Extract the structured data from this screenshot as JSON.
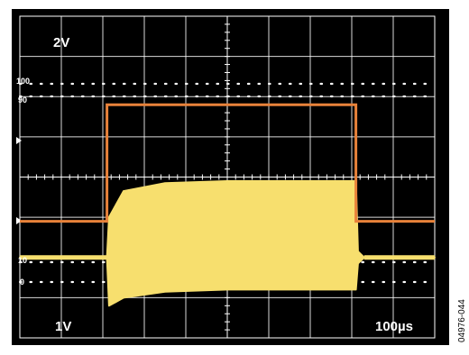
{
  "figure_id": "04976-044",
  "chart_data": {
    "type": "line",
    "title": "",
    "grid": true,
    "colors": {
      "background": "#000000",
      "grid": "#ffffff",
      "channel1": "#e8823a",
      "channel2": "#f7df6e"
    },
    "time_per_div": "100µs",
    "divisions": {
      "x": 10,
      "y": 8
    },
    "labels": {
      "ch1_scale": "2V",
      "ch2_scale": "1V",
      "timebase": "100µs",
      "ref_100": "100",
      "ref_90": "90",
      "ref_10": "10",
      "ref_0": "0"
    },
    "series": [
      {
        "name": "",
        "scale": "2V/div",
        "x_div": [
          0,
          2.1,
          2.1,
          8.1,
          8.1,
          10
        ],
        "y_div": [
          -1.1,
          -1.1,
          1.8,
          1.8,
          -1.1,
          -1.1
        ]
      },
      {
        "name": "",
        "scale": "1V/div",
        "x_div": [
          0,
          2.1,
          2.15,
          2.5,
          3.5,
          5,
          8.1,
          8.15,
          8.3,
          10
        ],
        "upper_div": [
          -2.0,
          -2.0,
          -1.0,
          -0.35,
          -0.15,
          -0.1,
          -0.1,
          -1.85,
          -2.0,
          -2.0
        ],
        "lower_div": [
          -2.0,
          -2.0,
          -3.2,
          -3.0,
          -2.85,
          -2.8,
          -2.8,
          -2.15,
          -2.0,
          -2.0
        ]
      }
    ]
  }
}
